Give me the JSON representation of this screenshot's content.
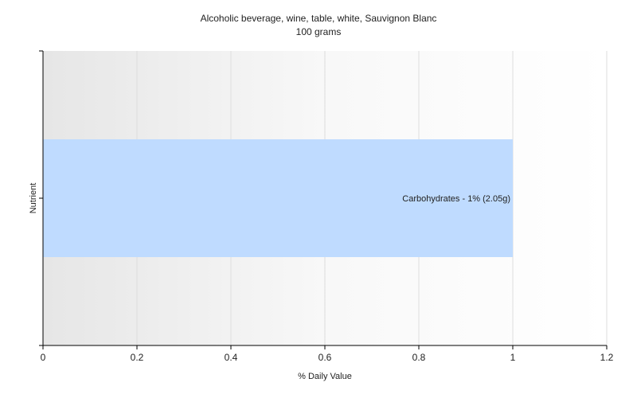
{
  "chart_data": {
    "type": "bar",
    "orientation": "horizontal",
    "title": "Alcoholic beverage, wine, table, white, Sauvignon Blanc",
    "subtitle": "100 grams",
    "xlabel": "% Daily Value",
    "ylabel": "Nutrient",
    "xlim": [
      0,
      1.2
    ],
    "xticks": [
      "0",
      "0.2",
      "0.4",
      "0.6",
      "0.8",
      "1",
      "1.2"
    ],
    "grid": true,
    "legend": "none",
    "categories": [
      "Carbohydrates"
    ],
    "values": [
      1
    ],
    "data_labels": [
      "Carbohydrates - 1% (2.05g)"
    ],
    "colors": {
      "bar": "#bfdbff",
      "axis": "#000000",
      "grid": "#dddddd"
    }
  }
}
